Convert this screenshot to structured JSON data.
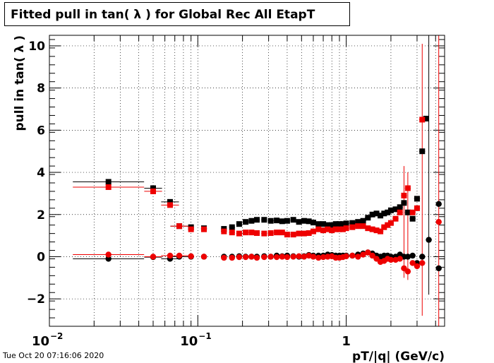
{
  "title": "Fitted pull in tan( λ ) for Global Rec All EtapT",
  "timestamp": "Tue Oct 20 07:16:06 2020",
  "chart_data": {
    "type": "scatter",
    "xlabel": "pT/|q| (GeV/c)",
    "ylabel": "pull in tan( λ )",
    "x_scale": "log",
    "xlim": [
      0.01,
      4.6
    ],
    "ylim": [
      -3.3,
      10.5
    ],
    "grid": true,
    "x_ticks": [
      {
        "value": 0.01,
        "base": "10",
        "exp": "−2"
      },
      {
        "value": 0.1,
        "base": "10",
        "exp": "−1"
      },
      {
        "value": 1,
        "base": "1",
        "exp": ""
      }
    ],
    "y_ticks": [
      -2,
      0,
      2,
      4,
      6,
      8,
      10
    ],
    "y_tick_labels": [
      "−2",
      "0",
      "2",
      "4",
      "6",
      "8",
      "10"
    ],
    "colors": {
      "series_black": "#000000",
      "series_red": "#ee0000"
    },
    "series": [
      {
        "marker": "square",
        "color": "#000000",
        "points": [
          [
            0.025,
            3.55
          ],
          [
            0.05,
            3.25
          ],
          [
            0.065,
            2.6
          ],
          [
            0.075,
            1.45
          ],
          [
            0.09,
            1.4
          ],
          [
            0.11,
            1.35
          ],
          [
            0.15,
            1.32
          ],
          [
            0.17,
            1.4
          ],
          [
            0.19,
            1.55
          ],
          [
            0.21,
            1.65
          ],
          [
            0.23,
            1.7
          ],
          [
            0.25,
            1.75
          ],
          [
            0.28,
            1.75
          ],
          [
            0.31,
            1.7
          ],
          [
            0.34,
            1.72
          ],
          [
            0.37,
            1.68
          ],
          [
            0.4,
            1.7
          ],
          [
            0.44,
            1.75
          ],
          [
            0.48,
            1.65
          ],
          [
            0.52,
            1.7
          ],
          [
            0.56,
            1.68
          ],
          [
            0.6,
            1.62
          ],
          [
            0.65,
            1.55
          ],
          [
            0.7,
            1.55
          ],
          [
            0.75,
            1.5
          ],
          [
            0.8,
            1.5
          ],
          [
            0.85,
            1.55
          ],
          [
            0.9,
            1.55
          ],
          [
            0.95,
            1.55
          ],
          [
            1.0,
            1.58
          ],
          [
            1.1,
            1.6
          ],
          [
            1.2,
            1.65
          ],
          [
            1.3,
            1.7
          ],
          [
            1.4,
            1.85
          ],
          [
            1.5,
            2.0
          ],
          [
            1.6,
            2.05
          ],
          [
            1.7,
            1.95
          ],
          [
            1.8,
            2.05
          ],
          [
            1.9,
            2.1
          ],
          [
            2.0,
            2.2
          ],
          [
            2.15,
            2.25
          ],
          [
            2.3,
            2.35
          ],
          [
            2.45,
            2.55
          ],
          [
            2.6,
            2.1
          ],
          [
            2.8,
            1.8
          ],
          [
            3.0,
            2.75
          ],
          [
            3.25,
            5.0
          ],
          [
            3.45,
            6.55
          ]
        ]
      },
      {
        "marker": "square",
        "color": "#ee0000",
        "points": [
          [
            0.025,
            3.3
          ],
          [
            0.05,
            3.1
          ],
          [
            0.065,
            2.45
          ],
          [
            0.075,
            1.45
          ],
          [
            0.09,
            1.3
          ],
          [
            0.11,
            1.3
          ],
          [
            0.15,
            1.2
          ],
          [
            0.17,
            1.15
          ],
          [
            0.19,
            1.1
          ],
          [
            0.21,
            1.15
          ],
          [
            0.23,
            1.15
          ],
          [
            0.25,
            1.12
          ],
          [
            0.28,
            1.1
          ],
          [
            0.31,
            1.12
          ],
          [
            0.34,
            1.15
          ],
          [
            0.37,
            1.15
          ],
          [
            0.4,
            1.05
          ],
          [
            0.44,
            1.05
          ],
          [
            0.48,
            1.1
          ],
          [
            0.52,
            1.1
          ],
          [
            0.56,
            1.12
          ],
          [
            0.6,
            1.2
          ],
          [
            0.65,
            1.3
          ],
          [
            0.7,
            1.25
          ],
          [
            0.75,
            1.3
          ],
          [
            0.8,
            1.25
          ],
          [
            0.85,
            1.3
          ],
          [
            0.9,
            1.3
          ],
          [
            0.95,
            1.3
          ],
          [
            1.0,
            1.35
          ],
          [
            1.1,
            1.4
          ],
          [
            1.2,
            1.45
          ],
          [
            1.3,
            1.45
          ],
          [
            1.4,
            1.35
          ],
          [
            1.5,
            1.3
          ],
          [
            1.6,
            1.25
          ],
          [
            1.7,
            1.2
          ],
          [
            1.8,
            1.4
          ],
          [
            1.9,
            1.5
          ],
          [
            2.0,
            1.6
          ],
          [
            2.15,
            1.8
          ],
          [
            2.3,
            2.1
          ],
          [
            2.45,
            2.9
          ],
          [
            2.6,
            3.25
          ],
          [
            2.8,
            2.1
          ],
          [
            3.0,
            2.3
          ],
          [
            3.25,
            6.5
          ]
        ]
      },
      {
        "marker": "circle",
        "color": "#000000",
        "points": [
          [
            0.025,
            -0.1
          ],
          [
            0.05,
            -0.02
          ],
          [
            0.065,
            -0.1
          ],
          [
            0.075,
            0.0
          ],
          [
            0.09,
            0.0
          ],
          [
            0.11,
            0.0
          ],
          [
            0.15,
            0.0
          ],
          [
            0.17,
            0.0
          ],
          [
            0.19,
            0.02
          ],
          [
            0.21,
            0.0
          ],
          [
            0.23,
            0.0
          ],
          [
            0.25,
            0.0
          ],
          [
            0.28,
            0.02
          ],
          [
            0.31,
            0.0
          ],
          [
            0.34,
            0.05
          ],
          [
            0.37,
            0.02
          ],
          [
            0.4,
            0.05
          ],
          [
            0.44,
            0.02
          ],
          [
            0.48,
            0.0
          ],
          [
            0.52,
            0.02
          ],
          [
            0.56,
            0.08
          ],
          [
            0.6,
            0.05
          ],
          [
            0.65,
            0.05
          ],
          [
            0.7,
            0.05
          ],
          [
            0.75,
            0.1
          ],
          [
            0.8,
            0.08
          ],
          [
            0.85,
            0.05
          ],
          [
            0.9,
            0.05
          ],
          [
            0.95,
            0.05
          ],
          [
            1.0,
            0.05
          ],
          [
            1.1,
            0.05
          ],
          [
            1.2,
            0.1
          ],
          [
            1.3,
            0.15
          ],
          [
            1.4,
            0.2
          ],
          [
            1.5,
            0.15
          ],
          [
            1.6,
            0.05
          ],
          [
            1.7,
            0.0
          ],
          [
            1.8,
            0.05
          ],
          [
            1.9,
            0.05
          ],
          [
            2.0,
            0.0
          ],
          [
            2.15,
            0.0
          ],
          [
            2.3,
            0.1
          ],
          [
            2.45,
            0.0
          ],
          [
            2.6,
            0.0
          ],
          [
            2.8,
            0.05
          ],
          [
            3.0,
            -0.3
          ],
          [
            3.25,
            0.0
          ],
          [
            3.6,
            0.8
          ],
          [
            4.2,
            -0.55
          ],
          [
            4.2,
            2.5
          ]
        ]
      },
      {
        "marker": "circle",
        "color": "#ee0000",
        "points": [
          [
            0.025,
            0.1
          ],
          [
            0.05,
            0.0
          ],
          [
            0.065,
            0.05
          ],
          [
            0.075,
            0.05
          ],
          [
            0.09,
            0.02
          ],
          [
            0.11,
            0.0
          ],
          [
            0.15,
            -0.05
          ],
          [
            0.17,
            -0.05
          ],
          [
            0.19,
            -0.02
          ],
          [
            0.21,
            -0.02
          ],
          [
            0.23,
            0.0
          ],
          [
            0.25,
            -0.05
          ],
          [
            0.28,
            -0.02
          ],
          [
            0.31,
            0.0
          ],
          [
            0.34,
            -0.02
          ],
          [
            0.37,
            0.0
          ],
          [
            0.4,
            -0.02
          ],
          [
            0.44,
            0.0
          ],
          [
            0.48,
            0.02
          ],
          [
            0.52,
            0.0
          ],
          [
            0.56,
            0.05
          ],
          [
            0.6,
            0.0
          ],
          [
            0.65,
            -0.05
          ],
          [
            0.7,
            -0.02
          ],
          [
            0.75,
            0.0
          ],
          [
            0.8,
            0.02
          ],
          [
            0.85,
            -0.05
          ],
          [
            0.9,
            -0.05
          ],
          [
            0.95,
            -0.02
          ],
          [
            1.0,
            0.02
          ],
          [
            1.1,
            0.05
          ],
          [
            1.2,
            0.0
          ],
          [
            1.3,
            0.1
          ],
          [
            1.4,
            0.2
          ],
          [
            1.5,
            0.05
          ],
          [
            1.6,
            -0.1
          ],
          [
            1.7,
            -0.25
          ],
          [
            1.8,
            -0.2
          ],
          [
            1.9,
            -0.1
          ],
          [
            2.0,
            -0.15
          ],
          [
            2.15,
            -0.15
          ],
          [
            2.3,
            -0.1
          ],
          [
            2.45,
            -0.55
          ],
          [
            2.6,
            -0.7
          ],
          [
            2.8,
            -0.3
          ],
          [
            3.0,
            -0.45
          ],
          [
            3.25,
            -0.3
          ],
          [
            4.2,
            1.65
          ]
        ]
      }
    ]
  }
}
